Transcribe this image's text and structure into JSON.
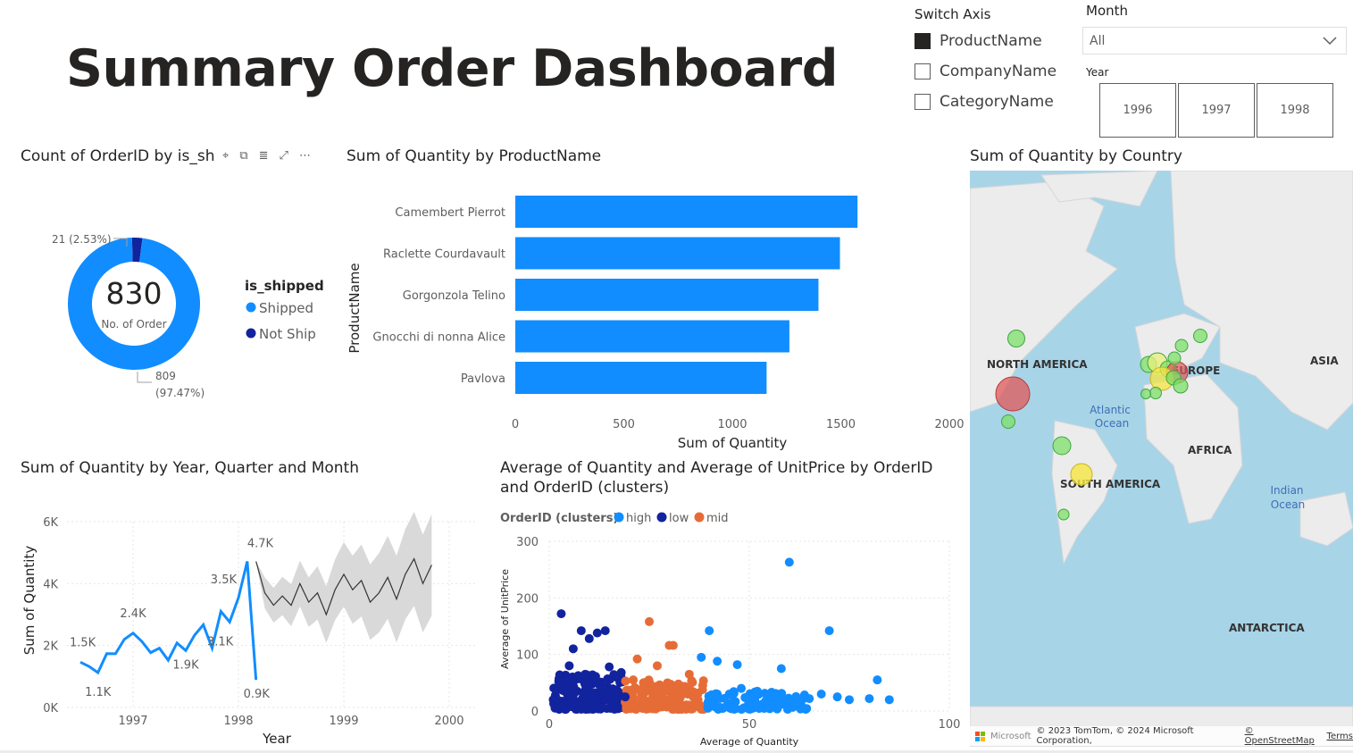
{
  "page": {
    "title": "Summary Order Dashboard"
  },
  "switch_axis": {
    "title": "Switch Axis",
    "options": [
      {
        "label": "ProductName",
        "checked": true
      },
      {
        "label": "CompanyName",
        "checked": false
      },
      {
        "label": "CategoryName",
        "checked": false
      }
    ]
  },
  "month_slicer": {
    "title": "Month",
    "value": "All"
  },
  "year_slicer": {
    "title": "Year",
    "options": [
      "1996",
      "1997",
      "1998"
    ]
  },
  "donut": {
    "title": "Count of OrderID by is_sh",
    "center_value": "830",
    "center_label": "No. of Order",
    "legend_title": "is_shipped",
    "label_small": "21 (2.53%)",
    "label_big_value": "809",
    "label_big_pct": "(97.47%)",
    "header_icons": [
      "pin-icon",
      "copy-icon",
      "filter-icon",
      "focus-icon",
      "more-icon"
    ]
  },
  "bar_chart": {
    "title": "Sum of Quantity by ProductName",
    "y_axis_label": "ProductName",
    "x_axis_label": "Sum of Quantity",
    "x_ticks": [
      "0",
      "500",
      "1000",
      "1500",
      "2000"
    ]
  },
  "line_chart": {
    "title": "Sum of Quantity by Year, Quarter and Month",
    "y_axis_label": "Sum of Quantity",
    "x_axis_label": "Year",
    "y_ticks": [
      "0K",
      "2K",
      "4K",
      "6K"
    ],
    "x_ticks": [
      "1997",
      "1998",
      "1999",
      "2000"
    ],
    "annotations": [
      "1.5K",
      "1.1K",
      "2.4K",
      "1.9K",
      "3.5K",
      "3.1K",
      "4.7K",
      "0.9K"
    ]
  },
  "scatter_chart": {
    "title_line1": "Average of Quantity and Average of UnitPrice by OrderID",
    "title_line2": "and OrderID (clusters)",
    "legend_title": "OrderID (clusters)",
    "y_axis_label": "Average of UnitPrice",
    "x_axis_label": "Average of Quantity",
    "y_ticks": [
      "0",
      "100",
      "200",
      "300"
    ],
    "x_ticks": [
      "0",
      "50",
      "100"
    ]
  },
  "map": {
    "title": "Sum of Quantity by Country",
    "labels": {
      "north_america": "NORTH AMERICA",
      "europe": "EUROPE",
      "asia": "ASIA",
      "africa": "AFRICA",
      "south_america": "SOUTH AMERICA",
      "antarctica": "ANTARCTICA",
      "atlantic1": "Atlantic",
      "atlantic2": "Ocean",
      "indian1": "Indian",
      "indian2": "Ocean"
    },
    "footer_ms": "Microsoft",
    "attribution": "© 2023 TomTom, © 2024 Microsoft Corporation,",
    "osm_link": "© OpenStreetMap",
    "terms_link": "Terms"
  },
  "colors": {
    "accent": "#118dff",
    "dark_blue": "#12239e",
    "orange": "#e66c37",
    "forecast_band": "#d9d9d9"
  },
  "chart_data": [
    {
      "type": "pie",
      "title": "Count of OrderID by is_shipped",
      "series": [
        {
          "name": "Shipped",
          "value": 809,
          "color": "#118dff"
        },
        {
          "name": "Not Ship",
          "value": 21,
          "color": "#12239e"
        }
      ]
    },
    {
      "type": "bar",
      "title": "Sum of Quantity by ProductName",
      "categories": [
        "Camembert Pierrot",
        "Raclette Courdavault",
        "Gorgonzola Telino",
        "Gnocchi di nonna Alice",
        "Pavlova"
      ],
      "values": [
        1577,
        1496,
        1397,
        1263,
        1158
      ],
      "xlabel": "Sum of Quantity",
      "ylabel": "ProductName",
      "xlim": [
        0,
        2000
      ]
    },
    {
      "type": "line",
      "title": "Sum of Quantity by Year, Quarter and Month",
      "xlabel": "Year",
      "ylabel": "Sum of Quantity",
      "ylim": [
        0,
        6500
      ],
      "x_start": "1996-07",
      "series": [
        {
          "name": "Sum of Quantity",
          "values": [
            1462,
            1322,
            1124,
            1738,
            1735,
            2200,
            2401,
            2132,
            1770,
            1912,
            1526,
            2082,
            1837,
            2333,
            2671,
            1913,
            3101,
            2760,
            3542,
            4716,
            892
          ]
        },
        {
          "name": "Forecast",
          "values": [
            3700,
            3300,
            3600,
            3300,
            4000,
            3400,
            3700,
            3000,
            3800,
            4300,
            3800,
            4100,
            3400,
            3700,
            4200,
            3500,
            4300,
            4800,
            4000,
            4600
          ]
        }
      ]
    },
    {
      "type": "scatter",
      "title": "Average of Quantity and Average of UnitPrice by OrderID and OrderID (clusters)",
      "xlabel": "Average of Quantity",
      "ylabel": "Average of UnitPrice",
      "xlim": [
        0,
        100
      ],
      "ylim": [
        0,
        300
      ],
      "series": [
        {
          "name": "high",
          "points": [
            [
              60,
              263
            ],
            [
              70,
              142
            ],
            [
              40,
              142
            ],
            [
              38,
              95
            ],
            [
              42,
              88
            ],
            [
              47,
              82
            ],
            [
              58,
              75
            ],
            [
              68,
              30
            ],
            [
              82,
              55
            ],
            [
              75,
              20
            ],
            [
              85,
              20
            ],
            [
              80,
              22
            ],
            [
              50,
              25
            ],
            [
              45,
              30
            ],
            [
              55,
              20
            ],
            [
              65,
              22
            ],
            [
              62,
              18
            ],
            [
              72,
              25
            ],
            [
              52,
              35
            ],
            [
              48,
              40
            ],
            [
              42,
              30
            ],
            [
              40,
              20
            ]
          ]
        },
        {
          "name": "low",
          "points": [
            [
              3,
              172
            ],
            [
              8,
              142
            ],
            [
              12,
              138
            ],
            [
              14,
              142
            ],
            [
              10,
              128
            ],
            [
              6,
              110
            ],
            [
              5,
              80
            ],
            [
              9,
              65
            ],
            [
              15,
              78
            ],
            [
              18,
              68
            ],
            [
              4,
              45
            ],
            [
              7,
              35
            ],
            [
              11,
              28
            ],
            [
              13,
              40
            ],
            [
              17,
              30
            ],
            [
              2,
              20
            ],
            [
              6,
              15
            ],
            [
              10,
              12
            ],
            [
              16,
              18
            ],
            [
              19,
              25
            ]
          ]
        },
        {
          "name": "mid",
          "points": [
            [
              25,
              158
            ],
            [
              30,
              116
            ],
            [
              31,
              116
            ],
            [
              22,
              92
            ],
            [
              27,
              80
            ],
            [
              35,
              65
            ],
            [
              21,
              55
            ],
            [
              24,
              45
            ],
            [
              29,
              35
            ],
            [
              33,
              28
            ],
            [
              26,
              22
            ],
            [
              23,
              15
            ],
            [
              32,
              18
            ],
            [
              36,
              25
            ],
            [
              28,
              12
            ]
          ]
        }
      ]
    }
  ]
}
